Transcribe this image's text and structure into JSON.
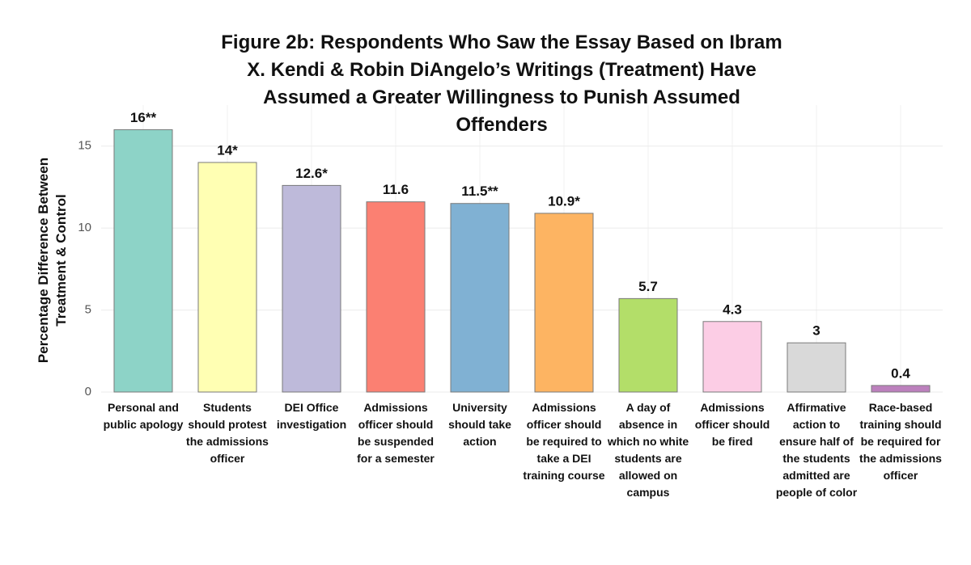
{
  "chart_data": {
    "type": "bar",
    "title": "Figure 2b: Respondents Who Saw the Essay Based on Ibram X. Kendi & Robin DiAngelo’s Writings (Treatment) Have Assumed a Greater Willingness to Punish Assumed Offenders",
    "y_label": "Percentage Difference Between Treatment & Control",
    "categories": [
      "Personal and public apology",
      "Students should protest the admissions officer",
      "DEI Office investigation",
      "Admissions officer should be suspended for a semester",
      "University should take action",
      "Admissions officer should be required to take a DEI training course",
      "A day of absence in which no white students are allowed on campus",
      "Admissions officer should be fired",
      "Affirmative action to ensure half of the students admitted are people of color",
      "Race-based training should be required for the admissions officer"
    ],
    "values": [
      16,
      14,
      12.6,
      11.6,
      11.5,
      10.9,
      5.7,
      4.3,
      3,
      0.4
    ],
    "value_labels": [
      "16**",
      "14*",
      "12.6*",
      "11.6",
      "11.5**",
      "10.9*",
      "5.7",
      "4.3",
      "3",
      "0.4"
    ],
    "colors": [
      "#8dd3c7",
      "#ffffb3",
      "#bebada",
      "#fb8072",
      "#80b1d3",
      "#fdb462",
      "#b3de69",
      "#fccde5",
      "#d9d9d9",
      "#bc80bd"
    ],
    "ylim": [
      0,
      17.5
    ],
    "yticks": [
      0,
      5,
      10,
      15
    ],
    "grid": true
  }
}
